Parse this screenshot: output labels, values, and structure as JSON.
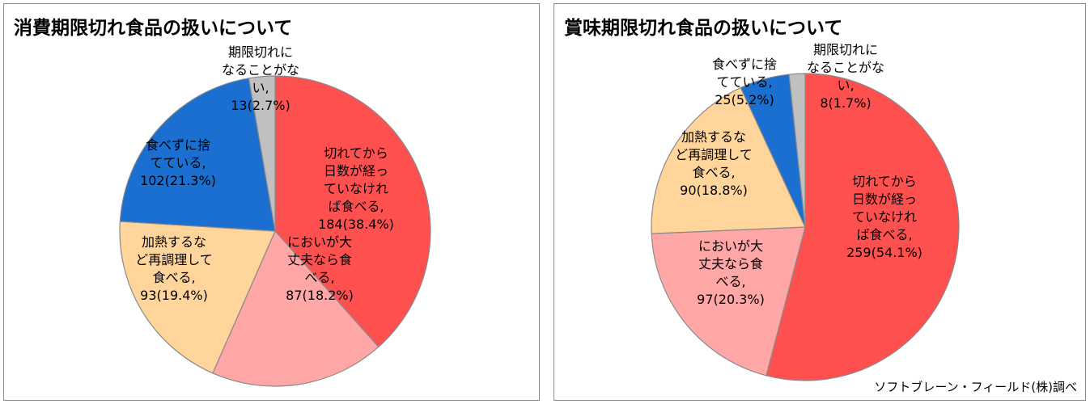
{
  "charts": [
    {
      "title": "消費期限切れ食品の扱いについて",
      "chart_data": {
        "type": "pie",
        "title": "消費期限切れ食品の扱いについて",
        "slices": [
          {
            "label": "切れてから日数が経っていなければ食べる",
            "value": 184,
            "percent": 38.4,
            "color": "#ff5050",
            "label_lines": [
              "切れてから",
              "日数が経っ",
              "ていなけれ",
              "ば食べる,",
              "184(38.4%)"
            ]
          },
          {
            "label": "においが大丈夫なら食べる",
            "value": 87,
            "percent": 18.2,
            "color": "#ffa6a6",
            "label_lines": [
              "においが大",
              "丈夫なら食",
              "べる,",
              "87(18.2%)"
            ]
          },
          {
            "label": "加熱するなど再調理して食べる",
            "value": 93,
            "percent": 19.4,
            "color": "#ffd59c",
            "label_lines": [
              "加熱するな",
              "ど再調理して",
              "食べる,",
              "93(19.4%)"
            ]
          },
          {
            "label": "食べずに捨てている",
            "value": 102,
            "percent": 21.3,
            "color": "#1a6fd0",
            "label_lines": [
              "食べずに捨",
              "てている,",
              "102(21.3%)"
            ]
          },
          {
            "label": "期限切れになることがない",
            "value": 13,
            "percent": 2.7,
            "color": "#c0c0c0",
            "label_lines": [
              "期限切れに",
              "なることがな",
              "い,",
              "13(2.7%)"
            ]
          }
        ]
      }
    },
    {
      "title": "賞味期限切れ食品の扱いについて",
      "chart_data": {
        "type": "pie",
        "title": "賞味期限切れ食品の扱いについて",
        "slices": [
          {
            "label": "切れてから日数が経っていなければ食べる",
            "value": 259,
            "percent": 54.1,
            "color": "#ff5050",
            "label_lines": [
              "切れてから",
              "日数が経っ",
              "ていなけれ",
              "ば食べる,",
              "259(54.1%)"
            ]
          },
          {
            "label": "においが大丈夫なら食べる",
            "value": 97,
            "percent": 20.3,
            "color": "#ffa6a6",
            "label_lines": [
              "においが大",
              "丈夫なら食",
              "べる,",
              "97(20.3%)"
            ]
          },
          {
            "label": "加熱するなど再調理して食べる",
            "value": 90,
            "percent": 18.8,
            "color": "#ffd59c",
            "label_lines": [
              "加熱するな",
              "ど再調理して",
              "食べる,",
              "90(18.8%)"
            ]
          },
          {
            "label": "食べずに捨てている",
            "value": 25,
            "percent": 5.2,
            "color": "#1a6fd0",
            "label_lines": [
              "食べずに捨",
              "てている,",
              "25(5.2%)"
            ]
          },
          {
            "label": "期限切れになることがない",
            "value": 8,
            "percent": 1.7,
            "color": "#c0c0c0",
            "label_lines": [
              "期限切れに",
              "なることがな",
              "い,",
              "8(1.7%)"
            ]
          }
        ]
      }
    }
  ],
  "credit": "ソフトブレーン・フィールド(株)調べ"
}
